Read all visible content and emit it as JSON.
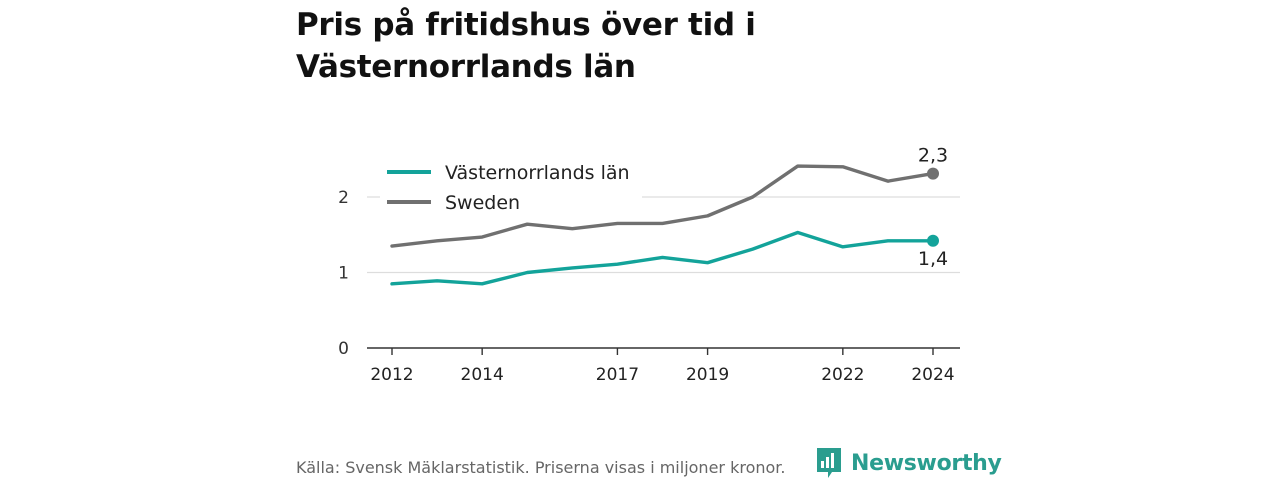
{
  "title": "Pris på fritidshus över tid i Västernorrlands län",
  "source": "Källa: Svensk Mäklarstatistik. Priserna visas i miljoner kronor.",
  "logo_text": "Newsworthy",
  "colors": {
    "series_1": "#13a39a",
    "series_2": "#707070",
    "grid": "#dddddd",
    "axis": "#333333",
    "logo": "#2a9d8f"
  },
  "chart_data": {
    "type": "line",
    "x": [
      2012,
      2013,
      2014,
      2015,
      2016,
      2017,
      2018,
      2019,
      2020,
      2021,
      2022,
      2023,
      2024
    ],
    "x_tick_labels": [
      "2012",
      "2014",
      "2017",
      "2019",
      "2022",
      "2024"
    ],
    "x_tick_values": [
      2012,
      2014,
      2017,
      2019,
      2022,
      2024
    ],
    "y_ticks": [
      0,
      1,
      2
    ],
    "y_tick_labels": [
      "0",
      "1",
      "2"
    ],
    "ylim": [
      0,
      2.6
    ],
    "grid": true,
    "legend_position": "top-left",
    "series": [
      {
        "name": "Västernorrlands län",
        "values": [
          0.85,
          0.89,
          0.85,
          1.0,
          1.06,
          1.11,
          1.2,
          1.13,
          1.31,
          1.53,
          1.34,
          1.42,
          1.42
        ],
        "end_label": "1,4",
        "end_label_position": "below"
      },
      {
        "name": "Sweden",
        "values": [
          1.35,
          1.42,
          1.47,
          1.64,
          1.58,
          1.65,
          1.65,
          1.75,
          2.0,
          2.41,
          2.4,
          2.21,
          2.31
        ],
        "end_label": "2,3",
        "end_label_position": "above"
      }
    ]
  }
}
